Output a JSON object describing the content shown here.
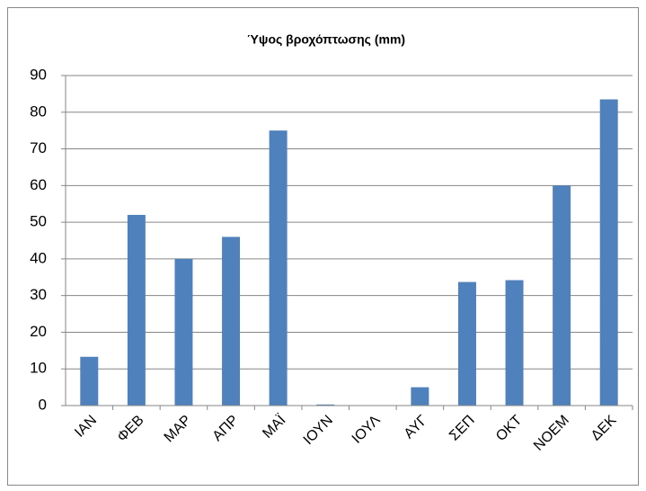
{
  "chart_data": {
    "type": "bar",
    "title": "Ύψος βροχόπτωσης (mm)",
    "categories": [
      "ΙΑΝ",
      "ΦΕΒ",
      "ΜΑΡ",
      "ΑΠΡ",
      "ΜΑΪ",
      "ΙΟΥΝ",
      "ΙΟΥΛ",
      "ΑΥΓ",
      "ΣΕΠ",
      "ΟΚΤ",
      "ΝΟΕΜ",
      "ΔΕΚ"
    ],
    "values": [
      13.3,
      52,
      40,
      46,
      75,
      0.3,
      0,
      5,
      33.7,
      34.2,
      60,
      83.5
    ],
    "color": "#4f81bd",
    "ylim": [
      0,
      90
    ],
    "yticks": [
      0,
      10,
      20,
      30,
      40,
      50,
      60,
      70,
      80,
      90
    ],
    "grid": true
  }
}
